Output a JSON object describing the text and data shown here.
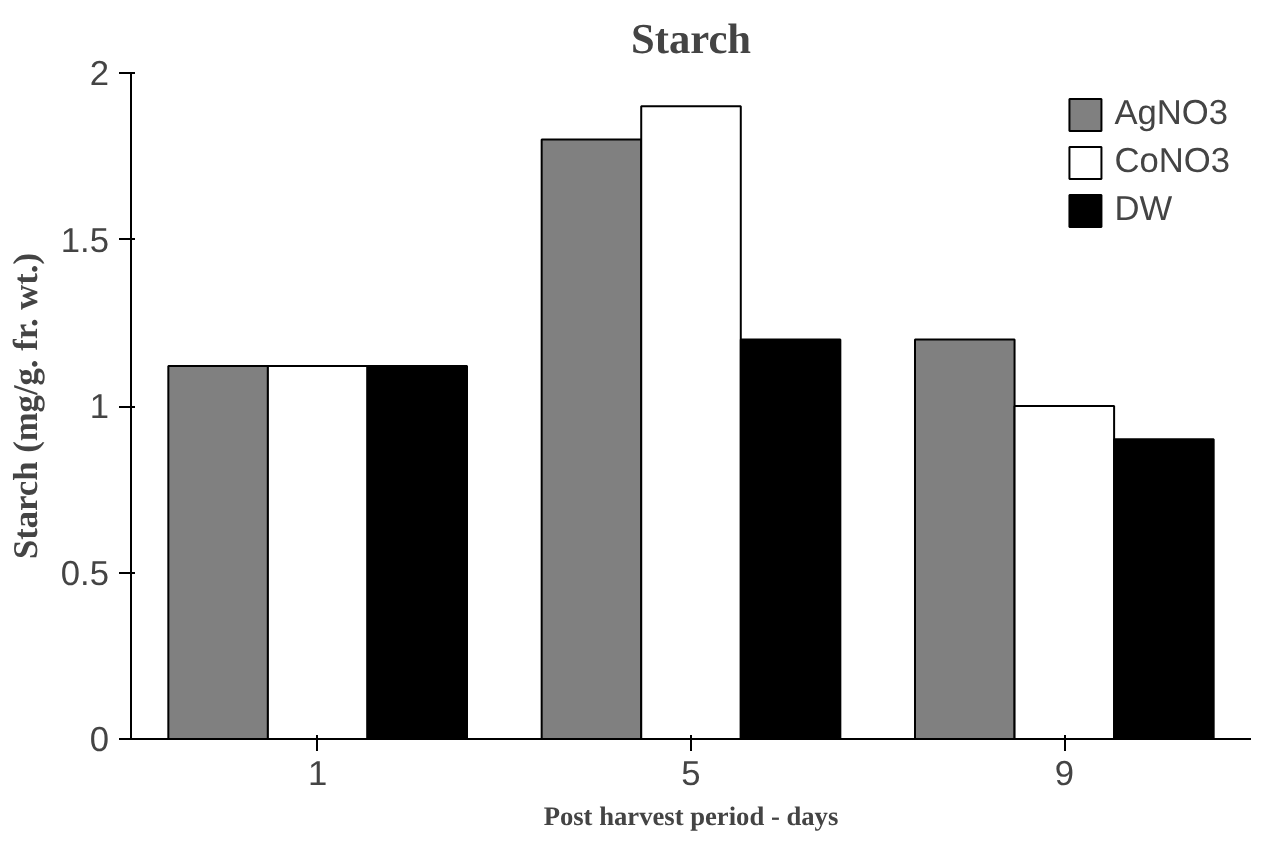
{
  "chart_data": {
    "type": "bar",
    "title": "Starch",
    "xlabel": "Post harvest period - days",
    "ylabel": "Starch (mg/g. fr. wt.)",
    "categories": [
      "1",
      "5",
      "9"
    ],
    "series": [
      {
        "name": "AgNO3",
        "color": "#808080",
        "values": [
          1.12,
          1.8,
          1.2
        ]
      },
      {
        "name": "CoNO3",
        "color": "#ffffff",
        "values": [
          1.12,
          1.9,
          1.0
        ]
      },
      {
        "name": "DW",
        "color": "#000000",
        "values": [
          1.12,
          1.2,
          0.9
        ]
      }
    ],
    "ylim": [
      0,
      2
    ],
    "yticks": [
      0,
      0.5,
      1,
      1.5,
      2
    ],
    "grid": false,
    "legend": "right"
  }
}
